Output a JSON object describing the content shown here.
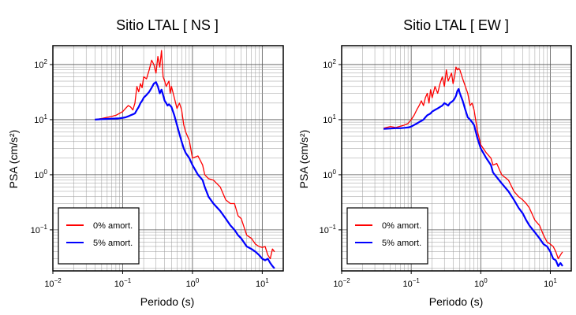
{
  "chart_data": [
    {
      "type": "line",
      "title": "Sitio LTAL [ NS ]",
      "xlabel": "Periodo (s)",
      "ylabel": "PSA (cm/s²)",
      "xscale": "log",
      "yscale": "log",
      "xlim": [
        0.01,
        20
      ],
      "ylim": [
        0.018,
        220
      ],
      "xticks": [
        {
          "value": 0.01,
          "base": "10",
          "exp": "−2"
        },
        {
          "value": 0.1,
          "base": "10",
          "exp": "−1"
        },
        {
          "value": 1,
          "base": "10",
          "exp": "0"
        },
        {
          "value": 10,
          "base": "10",
          "exp": "1"
        }
      ],
      "yticks": [
        {
          "value": 0.1,
          "base": "10",
          "exp": "−1"
        },
        {
          "value": 1,
          "base": "10",
          "exp": "0"
        },
        {
          "value": 10,
          "base": "10",
          "exp": "1"
        },
        {
          "value": 100,
          "base": "10",
          "exp": "2"
        }
      ],
      "grid": true,
      "legend_position": "bottom-left",
      "series": [
        {
          "name": "0% amort.",
          "color": "#ff0000",
          "x": [
            0.04,
            0.05,
            0.06,
            0.07,
            0.08,
            0.09,
            0.1,
            0.11,
            0.12,
            0.13,
            0.14,
            0.15,
            0.16,
            0.17,
            0.18,
            0.19,
            0.2,
            0.22,
            0.24,
            0.26,
            0.28,
            0.3,
            0.32,
            0.34,
            0.36,
            0.38,
            0.4,
            0.42,
            0.44,
            0.46,
            0.48,
            0.5,
            0.55,
            0.6,
            0.65,
            0.7,
            0.75,
            0.8,
            0.9,
            1.0,
            1.2,
            1.4,
            1.5,
            1.7,
            2.0,
            2.5,
            3.0,
            3.5,
            4.0,
            4.5,
            5.0,
            6.0,
            7.0,
            8.0,
            9.0,
            10.0,
            11.0,
            12.0,
            13.0,
            14.0,
            15.0
          ],
          "y": [
            10,
            10.5,
            11,
            11.5,
            12,
            13,
            14,
            16,
            18,
            17,
            15,
            20,
            40,
            32,
            45,
            38,
            60,
            55,
            80,
            120,
            100,
            70,
            140,
            90,
            180,
            60,
            50,
            40,
            45,
            50,
            30,
            40,
            25,
            16,
            20,
            15,
            8,
            6,
            4.2,
            2.0,
            2.2,
            1.5,
            1.0,
            0.85,
            0.8,
            0.6,
            0.35,
            0.3,
            0.3,
            0.18,
            0.16,
            0.08,
            0.07,
            0.055,
            0.05,
            0.048,
            0.05,
            0.035,
            0.03,
            0.045,
            0.04
          ]
        },
        {
          "name": "5% amort.",
          "color": "#0000ff",
          "x": [
            0.04,
            0.05,
            0.06,
            0.07,
            0.08,
            0.09,
            0.1,
            0.11,
            0.12,
            0.13,
            0.14,
            0.15,
            0.16,
            0.17,
            0.18,
            0.19,
            0.2,
            0.22,
            0.24,
            0.26,
            0.28,
            0.3,
            0.32,
            0.34,
            0.36,
            0.38,
            0.4,
            0.42,
            0.44,
            0.46,
            0.48,
            0.5,
            0.55,
            0.6,
            0.65,
            0.7,
            0.75,
            0.8,
            0.9,
            1.0,
            1.2,
            1.4,
            1.5,
            1.7,
            2.0,
            2.5,
            3.0,
            3.5,
            4.0,
            4.5,
            5.0,
            6.0,
            7.0,
            8.0,
            9.0,
            10.0,
            11.0,
            12.0,
            13.0,
            14.0,
            15.0
          ],
          "y": [
            10,
            10.2,
            10.3,
            10.4,
            10.5,
            10.6,
            10.8,
            11,
            11.5,
            12,
            12.5,
            13,
            15,
            17,
            20,
            22,
            25,
            28,
            32,
            38,
            45,
            48,
            40,
            30,
            35,
            28,
            22,
            20,
            18,
            19,
            18,
            17,
            12,
            8,
            5.5,
            4.0,
            3.0,
            2.5,
            2.0,
            1.5,
            1.0,
            0.8,
            0.6,
            0.4,
            0.3,
            0.22,
            0.16,
            0.12,
            0.1,
            0.08,
            0.07,
            0.05,
            0.045,
            0.04,
            0.035,
            0.03,
            0.028,
            0.03,
            0.025,
            0.022,
            0.02
          ]
        }
      ]
    },
    {
      "type": "line",
      "title": "Sitio LTAL [ EW ]",
      "xlabel": "Periodo (s)",
      "ylabel": "PSA (cm/s²)",
      "xscale": "log",
      "yscale": "log",
      "xlim": [
        0.01,
        20
      ],
      "ylim": [
        0.018,
        220
      ],
      "xticks": [
        {
          "value": 0.01,
          "base": "10",
          "exp": "−2"
        },
        {
          "value": 0.1,
          "base": "10",
          "exp": "−1"
        },
        {
          "value": 1,
          "base": "10",
          "exp": "0"
        },
        {
          "value": 10,
          "base": "10",
          "exp": "1"
        }
      ],
      "yticks": [
        {
          "value": 0.1,
          "base": "10",
          "exp": "−1"
        },
        {
          "value": 1,
          "base": "10",
          "exp": "0"
        },
        {
          "value": 10,
          "base": "10",
          "exp": "1"
        },
        {
          "value": 100,
          "base": "10",
          "exp": "2"
        }
      ],
      "grid": true,
      "legend_position": "bottom-left",
      "series": [
        {
          "name": "0% amort.",
          "color": "#ff0000",
          "x": [
            0.04,
            0.05,
            0.06,
            0.07,
            0.08,
            0.09,
            0.1,
            0.11,
            0.12,
            0.13,
            0.14,
            0.15,
            0.16,
            0.17,
            0.18,
            0.19,
            0.2,
            0.22,
            0.24,
            0.26,
            0.28,
            0.3,
            0.32,
            0.34,
            0.36,
            0.38,
            0.4,
            0.42,
            0.44,
            0.46,
            0.48,
            0.5,
            0.55,
            0.6,
            0.65,
            0.7,
            0.75,
            0.8,
            0.9,
            1.0,
            1.2,
            1.4,
            1.5,
            1.7,
            2.0,
            2.5,
            3.0,
            3.5,
            4.0,
            4.5,
            5.0,
            6.0,
            7.0,
            8.0,
            9.0,
            10.0,
            11.0,
            12.0,
            13.0,
            14.0,
            15.0
          ],
          "y": [
            7,
            7.5,
            7.2,
            7.6,
            8,
            8.5,
            10,
            12,
            15,
            18,
            22,
            18,
            25,
            30,
            20,
            35,
            25,
            40,
            30,
            45,
            60,
            40,
            80,
            50,
            60,
            70,
            45,
            60,
            90,
            80,
            85,
            80,
            55,
            40,
            30,
            18,
            20,
            15,
            6,
            3.5,
            2.5,
            2.0,
            1.5,
            1.6,
            1.0,
            0.8,
            0.5,
            0.4,
            0.35,
            0.3,
            0.25,
            0.15,
            0.12,
            0.08,
            0.06,
            0.055,
            0.05,
            0.04,
            0.03,
            0.035,
            0.04
          ]
        },
        {
          "name": "5% amort.",
          "color": "#0000ff",
          "x": [
            0.04,
            0.05,
            0.06,
            0.07,
            0.08,
            0.09,
            0.1,
            0.11,
            0.12,
            0.13,
            0.14,
            0.15,
            0.16,
            0.17,
            0.18,
            0.19,
            0.2,
            0.22,
            0.24,
            0.26,
            0.28,
            0.3,
            0.32,
            0.34,
            0.36,
            0.38,
            0.4,
            0.42,
            0.44,
            0.46,
            0.48,
            0.5,
            0.55,
            0.6,
            0.65,
            0.7,
            0.75,
            0.8,
            0.9,
            1.0,
            1.2,
            1.4,
            1.5,
            1.7,
            2.0,
            2.5,
            3.0,
            3.5,
            4.0,
            4.5,
            5.0,
            6.0,
            7.0,
            8.0,
            9.0,
            10.0,
            11.0,
            12.0,
            13.0,
            14.0,
            15.0
          ],
          "y": [
            6.8,
            6.9,
            7.0,
            7.0,
            7.1,
            7.2,
            7.5,
            8,
            8.5,
            9,
            9.5,
            10,
            11,
            12,
            12.5,
            13,
            14,
            15,
            16,
            17,
            18,
            20,
            19,
            18,
            20,
            21,
            22,
            24,
            27,
            33,
            36,
            30,
            22,
            15,
            11,
            10,
            9,
            8,
            4.5,
            3.0,
            2.0,
            1.5,
            1.1,
            0.9,
            0.7,
            0.5,
            0.35,
            0.25,
            0.2,
            0.15,
            0.12,
            0.09,
            0.07,
            0.055,
            0.05,
            0.04,
            0.03,
            0.028,
            0.022,
            0.025,
            0.022
          ]
        }
      ]
    }
  ]
}
